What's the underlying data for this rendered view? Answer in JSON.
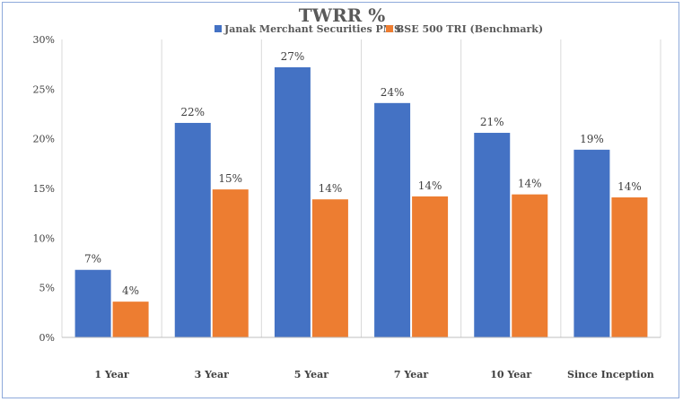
{
  "chart_data": {
    "type": "bar",
    "title": "TWRR %",
    "xlabel": "",
    "ylabel": "",
    "categories": [
      "1 Year",
      "3 Year",
      "5 Year",
      "7 Year",
      "10 Year",
      "Since Inception"
    ],
    "series": [
      {
        "name": "Janak Merchant Securities PMS",
        "color": "#4472c4",
        "values": [
          6.8,
          21.6,
          27.2,
          23.6,
          20.6,
          18.9
        ],
        "labels": [
          "7%",
          "22%",
          "27%",
          "24%",
          "21%",
          "19%"
        ]
      },
      {
        "name": "BSE 500 TRI (Benchmark)",
        "color": "#ed7d31",
        "values": [
          3.6,
          14.9,
          13.9,
          14.2,
          14.4,
          14.1
        ],
        "labels": [
          "4%",
          "15%",
          "14%",
          "14%",
          "14%",
          "14%"
        ]
      }
    ],
    "ylim": [
      0,
      30
    ],
    "yticks": [
      0,
      5,
      10,
      15,
      20,
      25,
      30
    ],
    "ytick_labels": [
      "0%",
      "5%",
      "10%",
      "15%",
      "20%",
      "25%",
      "30%"
    ],
    "grid": "vertical category separators",
    "legend_position": "top"
  }
}
